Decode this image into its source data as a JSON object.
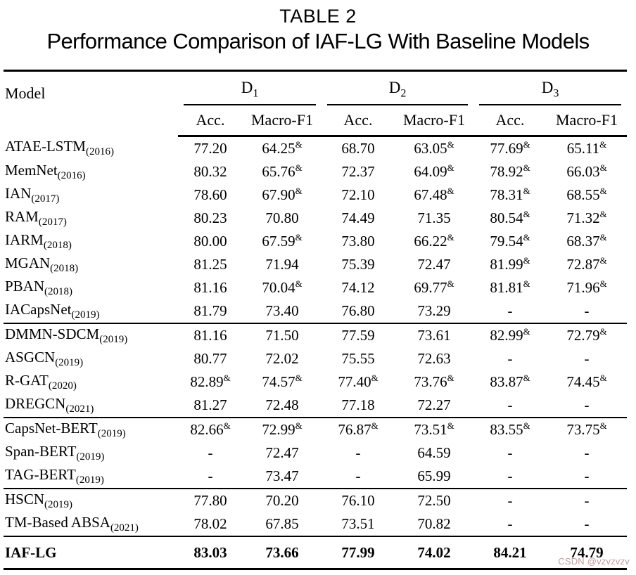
{
  "caption": {
    "label": "TABLE 2",
    "title": "Performance Comparison of IAF-LG With Baseline Models"
  },
  "header": {
    "model": "Model",
    "groups": [
      {
        "name": "D",
        "sub": "1"
      },
      {
        "name": "D",
        "sub": "2"
      },
      {
        "name": "D",
        "sub": "3"
      }
    ],
    "acc_label": "Acc.",
    "f1_label": "Macro-F1"
  },
  "table": {
    "columns": [
      "Model",
      "D1 Acc.",
      "D1 Macro-F1",
      "D2 Acc.",
      "D2 Macro-F1",
      "D3 Acc.",
      "D3 Macro-F1"
    ],
    "footnote_marker": "&",
    "sections": [
      {
        "rows": [
          {
            "model": "ATAE-LSTM",
            "year": "(2016)",
            "values": [
              "77.20",
              "64.25&",
              "68.70",
              "63.05&",
              "77.69&",
              "65.11&"
            ]
          },
          {
            "model": "MemNet",
            "year": "(2016)",
            "values": [
              "80.32",
              "65.76&",
              "72.37",
              "64.09&",
              "78.92&",
              "66.03&"
            ]
          },
          {
            "model": "IAN",
            "year": "(2017)",
            "values": [
              "78.60",
              "67.90&",
              "72.10",
              "67.48&",
              "78.31&",
              "68.55&"
            ]
          },
          {
            "model": "RAM",
            "year": "(2017)",
            "values": [
              "80.23",
              "70.80",
              "74.49",
              "71.35",
              "80.54&",
              "71.32&"
            ]
          },
          {
            "model": "IARM",
            "year": "(2018)",
            "values": [
              "80.00",
              "67.59&",
              "73.80",
              "66.22&",
              "79.54&",
              "68.37&"
            ]
          },
          {
            "model": "MGAN",
            "year": "(2018)",
            "values": [
              "81.25",
              "71.94",
              "75.39",
              "72.47",
              "81.99&",
              "72.87&"
            ]
          },
          {
            "model": "PBAN",
            "year": "(2018)",
            "values": [
              "81.16",
              "70.04&",
              "74.12",
              "69.77&",
              "81.81&",
              "71.96&"
            ]
          },
          {
            "model": "IACapsNet",
            "year": "(2019)",
            "values": [
              "81.79",
              "73.40",
              "76.80",
              "73.29",
              "-",
              "-"
            ]
          }
        ]
      },
      {
        "rows": [
          {
            "model": "DMMN-SDCM",
            "year": "(2019)",
            "values": [
              "81.16",
              "71.50",
              "77.59",
              "73.61",
              "82.99&",
              "72.79&"
            ]
          },
          {
            "model": "ASGCN",
            "year": "(2019)",
            "values": [
              "80.77",
              "72.02",
              "75.55",
              "72.63",
              "-",
              "-"
            ]
          },
          {
            "model": "R-GAT",
            "year": "(2020)",
            "values": [
              "82.89&",
              "74.57&",
              "77.40&",
              "73.76&",
              "83.87&",
              "74.45&"
            ]
          },
          {
            "model": "DREGCN",
            "year": "(2021)",
            "values": [
              "81.27",
              "72.48",
              "77.18",
              "72.27",
              "-",
              "-"
            ]
          }
        ]
      },
      {
        "rows": [
          {
            "model": "CapsNet-BERT",
            "year": "(2019)",
            "values": [
              "82.66&",
              "72.99&",
              "76.87&",
              "73.51&",
              "83.55&",
              "73.75&"
            ]
          },
          {
            "model": "Span-BERT",
            "year": "(2019)",
            "values": [
              "-",
              "72.47",
              "-",
              "64.59",
              "-",
              "-"
            ]
          },
          {
            "model": "TAG-BERT",
            "year": "(2019)",
            "values": [
              "-",
              "73.47",
              "-",
              "65.99",
              "-",
              "-"
            ]
          }
        ]
      },
      {
        "rows": [
          {
            "model": "HSCN",
            "year": "(2019)",
            "values": [
              "77.80",
              "70.20",
              "76.10",
              "72.50",
              "-",
              "-"
            ]
          },
          {
            "model": "TM-Based ABSA",
            "year": "(2021)",
            "values": [
              "78.02",
              "67.85",
              "73.51",
              "70.82",
              "-",
              "-"
            ]
          }
        ]
      },
      {
        "rows": [
          {
            "model": "IAF-LG",
            "year": "",
            "bold": true,
            "values": [
              "83.03",
              "73.66",
              "77.99",
              "74.02",
              "84.21",
              "74.79"
            ]
          }
        ]
      }
    ]
  },
  "watermark": {
    "text": "CSDN @vzvzvzv",
    "color": "#c59d9d"
  }
}
